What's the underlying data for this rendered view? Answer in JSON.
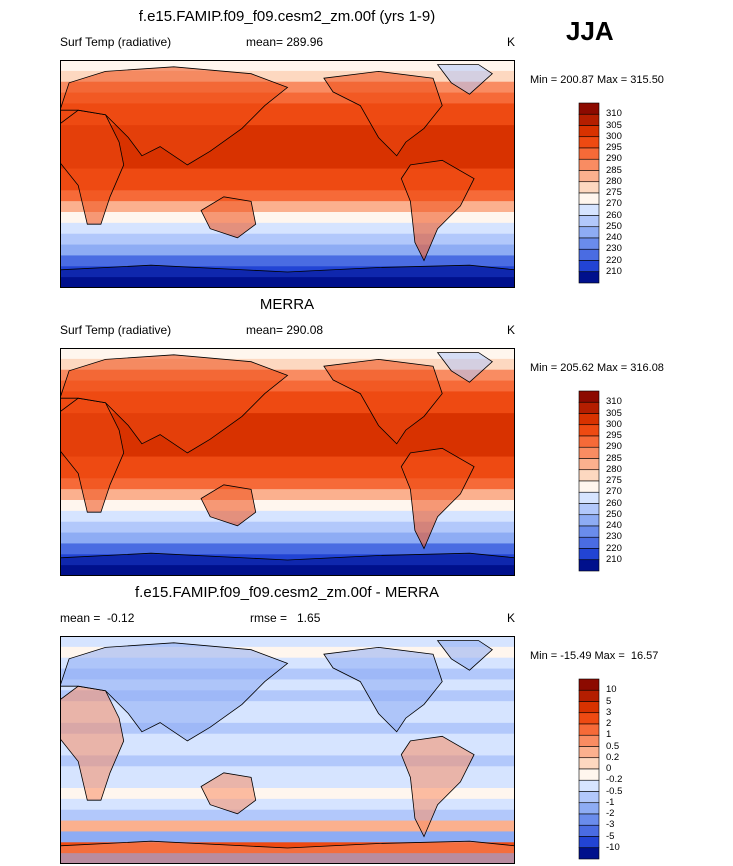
{
  "season": "JJA",
  "panels": [
    {
      "title": "f.e15.FAMIP.f09_f09.cesm2_zm.00f (yrs 1-9)",
      "left": "Surf Temp (radiative)",
      "center": "mean= 289.96",
      "right": "K",
      "minmax": "Min = 200.87 Max = 315.50",
      "colorbar": {
        "labels": [
          "310",
          "305",
          "300",
          "295",
          "290",
          "285",
          "280",
          "275",
          "270",
          "260",
          "250",
          "240",
          "230",
          "220",
          "210"
        ],
        "colors": [
          "#8c0a00",
          "#b41e00",
          "#d83200",
          "#ee4a12",
          "#f66a38",
          "#f98c62",
          "#fbb08e",
          "#fdd8c0",
          "#fff6ee",
          "#d6e4ff",
          "#b2c8fb",
          "#8eacf4",
          "#6a8cec",
          "#4a6ce2",
          "#2244d4",
          "#00108c"
        ]
      }
    },
    {
      "title": "MERRA",
      "left": "Surf Temp (radiative)",
      "center": "mean= 290.08",
      "right": "K",
      "minmax": "Min = 205.62 Max = 316.08",
      "colorbar": {
        "labels": [
          "310",
          "305",
          "300",
          "295",
          "290",
          "285",
          "280",
          "275",
          "270",
          "260",
          "250",
          "240",
          "230",
          "220",
          "210"
        ],
        "colors": [
          "#8c0a00",
          "#b41e00",
          "#d83200",
          "#ee4a12",
          "#f66a38",
          "#f98c62",
          "#fbb08e",
          "#fdd8c0",
          "#fff6ee",
          "#d6e4ff",
          "#b2c8fb",
          "#8eacf4",
          "#6a8cec",
          "#4a6ce2",
          "#2244d4",
          "#00108c"
        ]
      }
    },
    {
      "title": "f.e15.FAMIP.f09_f09.cesm2_zm.00f - MERRA",
      "left": "mean =  -0.12",
      "center": "rmse =   1.65",
      "right": "K",
      "minmax": "Min = -15.49 Max =  16.57",
      "colorbar": {
        "labels": [
          "10",
          "5",
          "3",
          "2",
          "1",
          "0.5",
          "0.2",
          "0",
          "-0.2",
          "-0.5",
          "-1",
          "-2",
          "-3",
          "-5",
          "-10"
        ],
        "colors": [
          "#8c0a00",
          "#b41e00",
          "#d83200",
          "#ee4a12",
          "#f66a38",
          "#f98c62",
          "#fbb08e",
          "#fdd8c0",
          "#fff6ee",
          "#d6e4ff",
          "#b2c8fb",
          "#8eacf4",
          "#6a8cec",
          "#4a6ce2",
          "#2244d4",
          "#00108c"
        ]
      }
    }
  ]
}
